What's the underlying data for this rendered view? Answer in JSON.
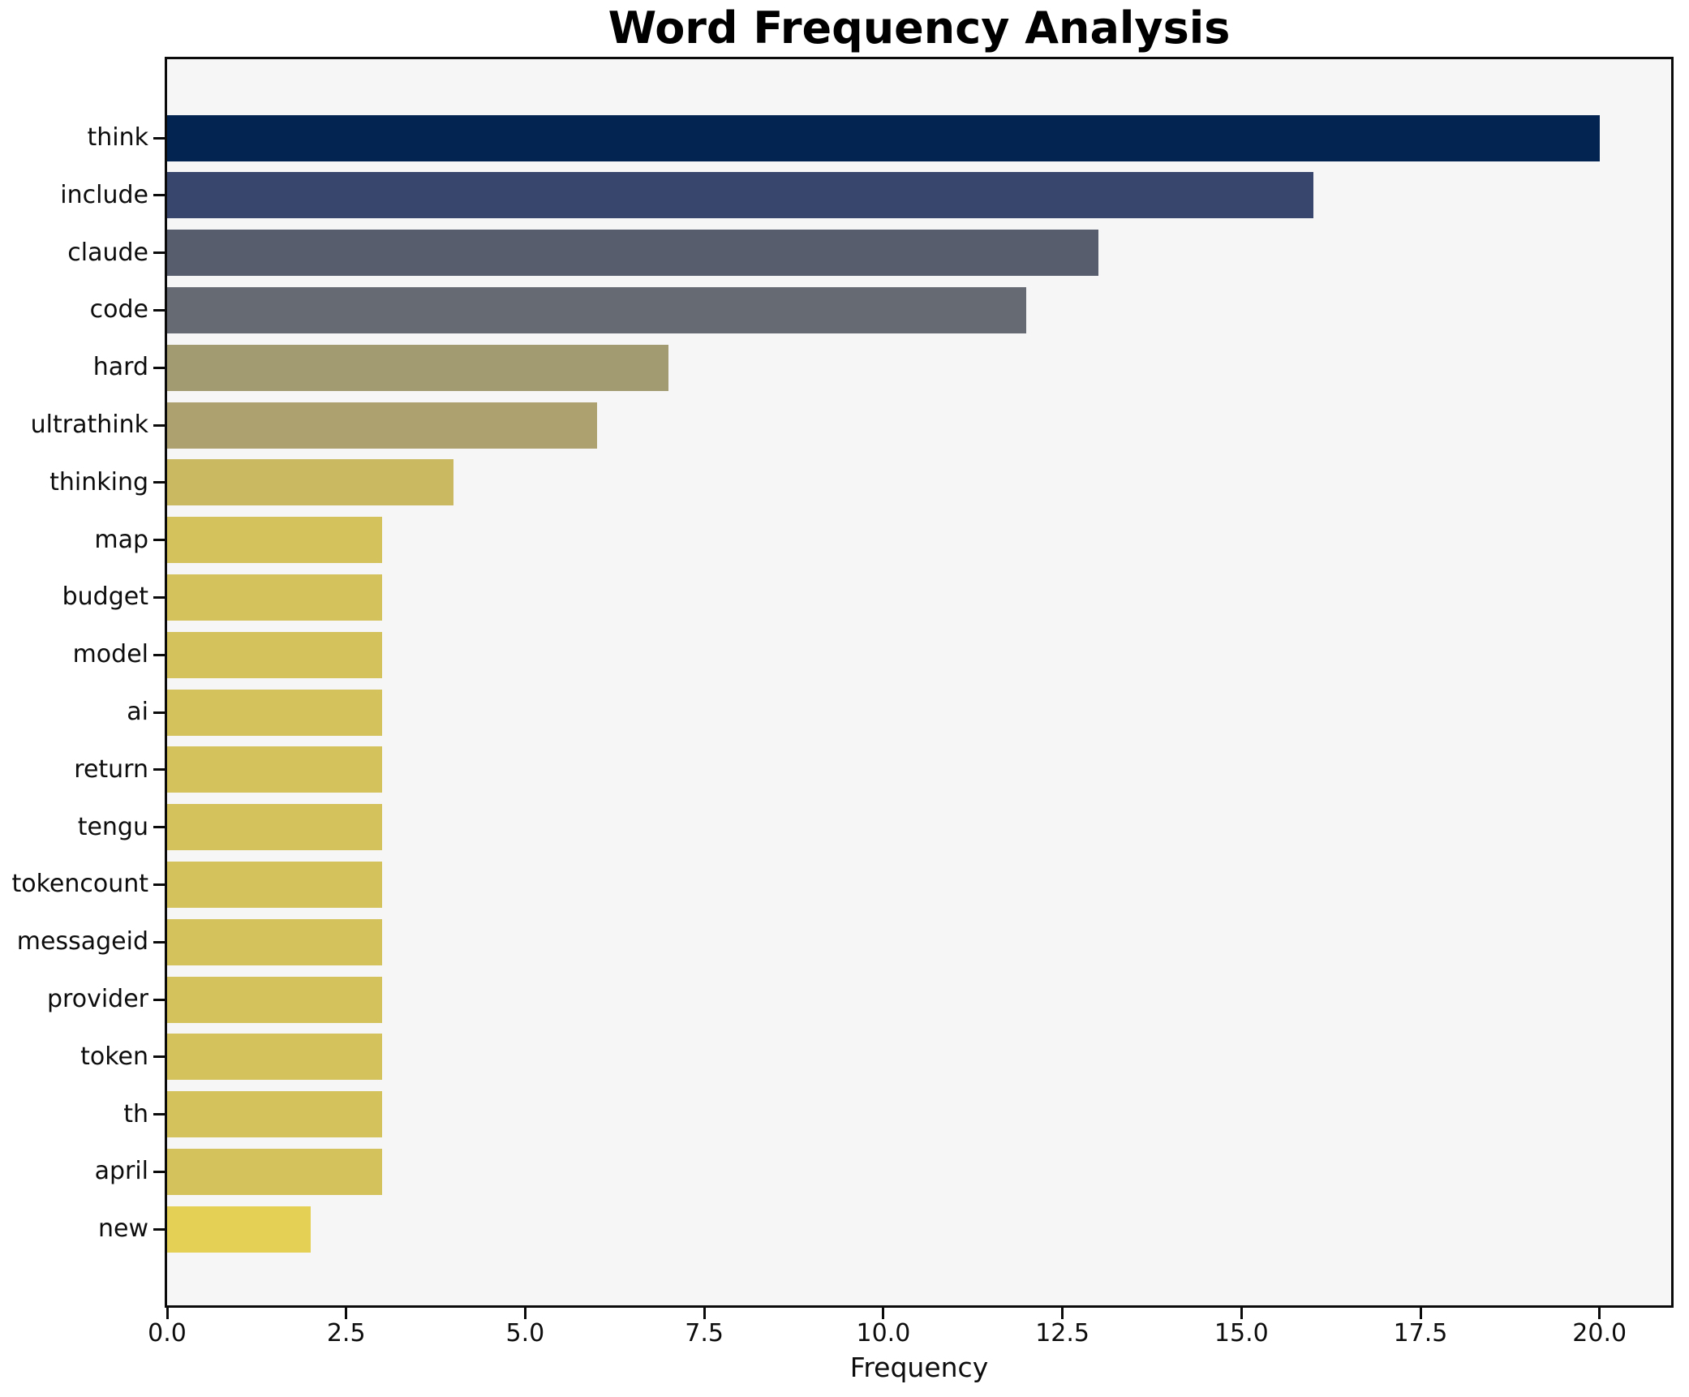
{
  "title": "Word Frequency Analysis",
  "chart_data": {
    "type": "bar",
    "orientation": "horizontal",
    "title": "Word Frequency Analysis",
    "xlabel": "Frequency",
    "ylabel": "",
    "categories": [
      "think",
      "include",
      "claude",
      "code",
      "hard",
      "ultrathink",
      "thinking",
      "map",
      "budget",
      "model",
      "ai",
      "return",
      "tengu",
      "tokencount",
      "messageid",
      "provider",
      "token",
      "th",
      "april",
      "new"
    ],
    "values": [
      20,
      16,
      13,
      12,
      7,
      6,
      4,
      3,
      3,
      3,
      3,
      3,
      3,
      3,
      3,
      3,
      3,
      3,
      3,
      2
    ],
    "bar_colors": [
      "#032350",
      "#38466e",
      "#575d6c",
      "#666a72",
      "#a29b71",
      "#ada26f",
      "#cab961",
      "#d4c25c",
      "#d4c25c",
      "#d4c25c",
      "#d4c25c",
      "#d4c25c",
      "#d4c25c",
      "#d4c25c",
      "#d4c25c",
      "#d4c25c",
      "#d4c25c",
      "#d4c25c",
      "#d4c25c",
      "#e3d055"
    ],
    "xlim": [
      0,
      21
    ],
    "x_ticks": [
      0,
      2.5,
      5,
      7.5,
      10,
      12.5,
      15,
      17.5,
      20
    ],
    "x_tick_labels": [
      "0.0",
      "2.5",
      "5.0",
      "7.5",
      "10.0",
      "12.5",
      "15.0",
      "17.5",
      "20.0"
    ],
    "grid": false,
    "legend": false,
    "plot_background": "#f6f6f6",
    "figure_background": "#ffffff",
    "spine_color": "#0b0b0b",
    "text_color": "#0d0d0d"
  }
}
